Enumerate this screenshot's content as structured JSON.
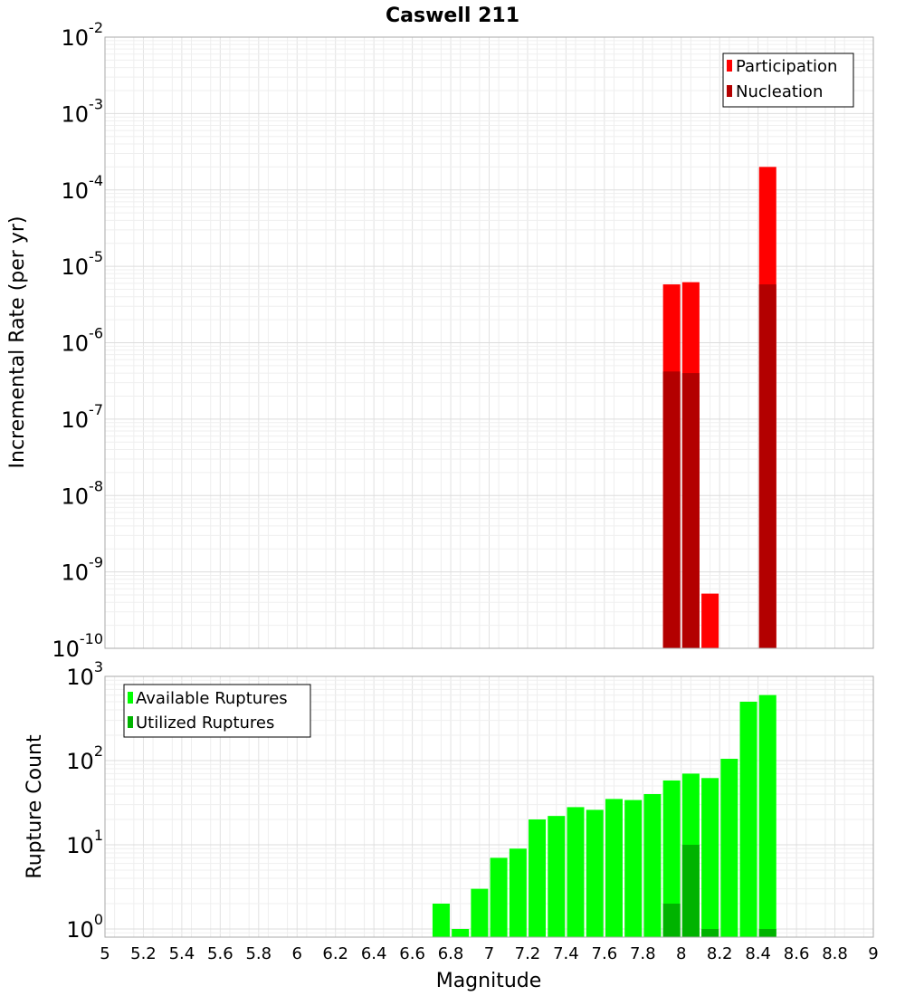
{
  "chart_data": [
    {
      "type": "bar",
      "title": "Caswell 211",
      "xlabel": "",
      "ylabel": "Incremental Rate (per yr)",
      "y_scale": "log",
      "ylim": [
        1e-10,
        0.01
      ],
      "xlim": [
        5,
        9
      ],
      "y_ticks": [
        {
          "base": "10",
          "exp": "-10"
        },
        {
          "base": "10",
          "exp": "-9"
        },
        {
          "base": "10",
          "exp": "-8"
        },
        {
          "base": "10",
          "exp": "-7"
        },
        {
          "base": "10",
          "exp": "-6"
        },
        {
          "base": "10",
          "exp": "-5"
        },
        {
          "base": "10",
          "exp": "-4"
        },
        {
          "base": "10",
          "exp": "-3"
        },
        {
          "base": "10",
          "exp": "-2"
        }
      ],
      "legend_position": "top-right",
      "grid": true,
      "series": [
        {
          "name": "Participation",
          "color": "#ff0000",
          "points": [
            {
              "x": 7.95,
              "y": 5.8e-06
            },
            {
              "x": 8.05,
              "y": 6.2e-06
            },
            {
              "x": 8.15,
              "y": 5.2e-10
            },
            {
              "x": 8.45,
              "y": 0.0002
            }
          ]
        },
        {
          "name": "Nucleation",
          "color": "#b30000",
          "points": [
            {
              "x": 7.95,
              "y": 4.2e-07
            },
            {
              "x": 8.05,
              "y": 4e-07
            },
            {
              "x": 8.45,
              "y": 5.8e-06
            }
          ]
        }
      ]
    },
    {
      "type": "bar",
      "title": "",
      "xlabel": "Magnitude",
      "ylabel": "Rupture Count",
      "y_scale": "log",
      "ylim": [
        0.8,
        1000
      ],
      "xlim": [
        5,
        9
      ],
      "x_ticks": [
        "5",
        "5.2",
        "5.4",
        "5.6",
        "5.8",
        "6",
        "6.2",
        "6.4",
        "6.6",
        "6.8",
        "7",
        "7.2",
        "7.4",
        "7.6",
        "7.8",
        "8",
        "8.2",
        "8.4",
        "8.6",
        "8.8",
        "9"
      ],
      "y_ticks": [
        {
          "base": "10",
          "exp": "0"
        },
        {
          "base": "10",
          "exp": "1"
        },
        {
          "base": "10",
          "exp": "2"
        },
        {
          "base": "10",
          "exp": "3"
        }
      ],
      "legend_position": "top-left",
      "grid": true,
      "series": [
        {
          "name": "Available Ruptures",
          "color": "#00ff00",
          "points": [
            {
              "x": 6.75,
              "y": 2
            },
            {
              "x": 6.85,
              "y": 1
            },
            {
              "x": 6.95,
              "y": 3
            },
            {
              "x": 7.05,
              "y": 7
            },
            {
              "x": 7.15,
              "y": 9
            },
            {
              "x": 7.25,
              "y": 20
            },
            {
              "x": 7.35,
              "y": 22
            },
            {
              "x": 7.45,
              "y": 28
            },
            {
              "x": 7.55,
              "y": 26
            },
            {
              "x": 7.65,
              "y": 35
            },
            {
              "x": 7.75,
              "y": 34
            },
            {
              "x": 7.85,
              "y": 40
            },
            {
              "x": 7.95,
              "y": 58
            },
            {
              "x": 8.05,
              "y": 70
            },
            {
              "x": 8.15,
              "y": 62
            },
            {
              "x": 8.25,
              "y": 105
            },
            {
              "x": 8.35,
              "y": 500
            },
            {
              "x": 8.45,
              "y": 600
            }
          ]
        },
        {
          "name": "Utilized Ruptures",
          "color": "#00b300",
          "points": [
            {
              "x": 7.95,
              "y": 2
            },
            {
              "x": 8.05,
              "y": 10
            },
            {
              "x": 8.15,
              "y": 1
            },
            {
              "x": 8.45,
              "y": 1
            }
          ]
        }
      ]
    }
  ]
}
